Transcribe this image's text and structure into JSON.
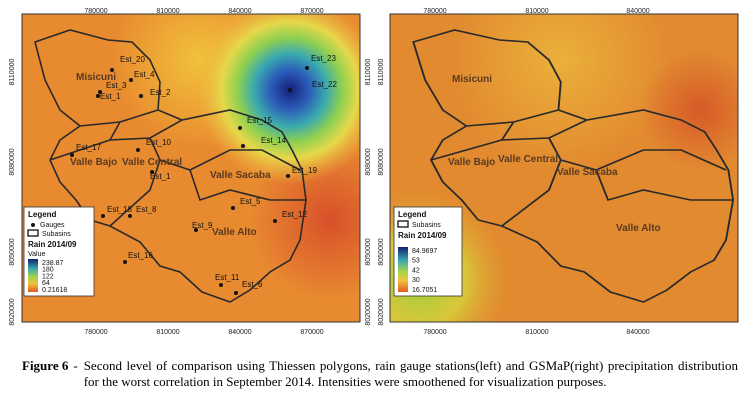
{
  "panels": [
    {
      "x_ticks": [
        "780000",
        "810000",
        "840000",
        "870000"
      ],
      "y_ticks": [
        "8110000",
        "8080000",
        "8050000",
        "8020000"
      ],
      "stations": [
        "Est_20",
        "Est_4",
        "Est_3",
        "Est_1",
        "Est_2",
        "Est_23",
        "Est_22",
        "Est_15",
        "Est_14",
        "Est_10",
        "Est_17",
        "Est_1",
        "Est_19",
        "Est_5",
        "Est_12",
        "Est_18",
        "Est_8",
        "Est_9",
        "Est_16",
        "Est_11",
        "Est_6"
      ],
      "subbasins": [
        "Misicuni",
        "Valle Bajo",
        "Valle Central",
        "Valle Sacaba",
        "Valle Alto"
      ],
      "legend": {
        "title": "Legend",
        "gauges": "Gauges",
        "subbasins": "Subasins",
        "rain": "Rain 2014/09",
        "value": "Value",
        "scale": [
          "238.87",
          "180",
          "122",
          "64",
          "0.21618"
        ]
      }
    },
    {
      "x_ticks": [
        "780000",
        "810000",
        "840000"
      ],
      "y_ticks": [
        "8110000",
        "8080000",
        "8050000",
        "8020000"
      ],
      "subbasins": [
        "Misicuni",
        "Valle Bajo",
        "Valle Central",
        "Valle Sacaba",
        "Valle Alto"
      ],
      "legend": {
        "title": "Legend",
        "subbasins": "Subasins",
        "rain": "Rain 2014/09",
        "scale": [
          "84.9697",
          "53",
          "42",
          "30",
          "16.7051"
        ]
      }
    }
  ],
  "caption": {
    "label": "Figure 6",
    "separator": "-",
    "text": "Second level of comparison using Thiessen polygons, rain gauge stations(left) and GSMaP(right) precipitation distribution for the worst correlation in September 2014. Intensities were smoothened for visualization purposes."
  }
}
